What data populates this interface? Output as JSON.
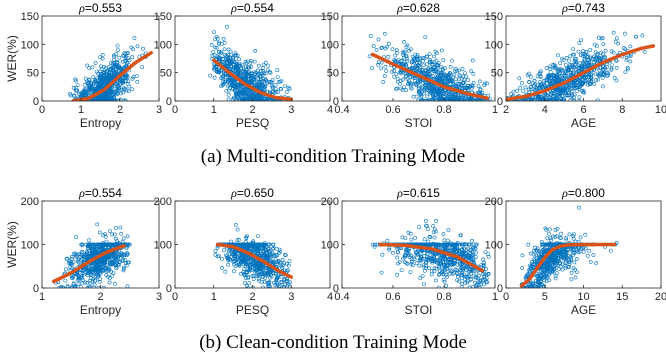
{
  "captions": [
    "(a)  Multi-condition Training Mode",
    "(b)  Clean-condition Training Mode"
  ],
  "colors": {
    "points": "#0072BD",
    "fit": "#D95319",
    "axis": "#262626"
  },
  "chart_data": [
    {
      "type": "scatter",
      "panel": "a1",
      "rho": "0.553",
      "xlabel": "Entropy",
      "ylabel": "WER(%)",
      "xlim": [
        0,
        3
      ],
      "ylim": [
        0,
        150
      ],
      "xticks": [
        0,
        1,
        2,
        3
      ],
      "yticks": [
        0,
        50,
        100,
        150
      ],
      "cloud": {
        "x_range": [
          0.7,
          2.8
        ],
        "center": 1.6,
        "spread": 0.35
      },
      "fit": {
        "x": [
          0.8,
          1.2,
          1.6,
          2.0,
          2.4,
          2.8
        ],
        "y": [
          0,
          5,
          20,
          45,
          68,
          85
        ]
      }
    },
    {
      "type": "scatter",
      "panel": "a2",
      "rho": "0.554",
      "xlabel": "PESQ",
      "ylabel": "",
      "xlim": [
        0,
        4
      ],
      "ylim": [
        0,
        150
      ],
      "xticks": [
        0,
        1,
        2,
        3,
        4
      ],
      "yticks": [
        0,
        50,
        100,
        150
      ],
      "cloud": {
        "x_range": [
          0.9,
          3.0
        ],
        "center": 1.8,
        "spread": 0.45
      },
      "fit": {
        "x": [
          1.0,
          1.4,
          1.8,
          2.2,
          2.6,
          3.0
        ],
        "y": [
          72,
          50,
          30,
          15,
          6,
          3
        ]
      }
    },
    {
      "type": "scatter",
      "panel": "a3",
      "rho": "0.628",
      "xlabel": "STOI",
      "ylabel": "",
      "xlim": [
        0.4,
        1
      ],
      "ylim": [
        0,
        150
      ],
      "xticks": [
        0.4,
        0.6,
        0.8,
        1
      ],
      "yticks": [
        0,
        50,
        100,
        150
      ],
      "cloud": {
        "x_range": [
          0.5,
          0.98
        ],
        "center": 0.78,
        "spread": 0.1
      },
      "fit": {
        "x": [
          0.52,
          0.6,
          0.7,
          0.8,
          0.9,
          0.97
        ],
        "y": [
          82,
          65,
          45,
          25,
          12,
          5
        ]
      }
    },
    {
      "type": "scatter",
      "panel": "a4",
      "rho": "0.743",
      "xlabel": "AGE",
      "ylabel": "",
      "xlim": [
        2,
        10
      ],
      "ylim": [
        0,
        150
      ],
      "xticks": [
        2,
        4,
        6,
        8,
        10
      ],
      "yticks": [
        0,
        50,
        100,
        150
      ],
      "cloud": {
        "x_range": [
          2.0,
          9.5
        ],
        "center": 5.0,
        "spread": 1.4
      },
      "fit": {
        "x": [
          2.0,
          3.0,
          4.0,
          5.0,
          6.0,
          7.0,
          8.0,
          9.0,
          9.6
        ],
        "y": [
          3,
          8,
          18,
          32,
          50,
          68,
          82,
          93,
          97
        ]
      }
    },
    {
      "type": "scatter",
      "panel": "b1",
      "rho": "0.554",
      "xlabel": "Entropy",
      "ylabel": "WER(%)",
      "xlim": [
        1,
        3
      ],
      "ylim": [
        0,
        200
      ],
      "xticks": [
        1,
        2,
        3
      ],
      "yticks": [
        0,
        100,
        200
      ],
      "cap": 100,
      "cloud": {
        "x_range": [
          1.2,
          2.5
        ],
        "center": 2.0,
        "spread": 0.25
      },
      "fit": {
        "x": [
          1.2,
          1.5,
          1.8,
          2.1,
          2.4
        ],
        "y": [
          15,
          35,
          60,
          82,
          97
        ]
      }
    },
    {
      "type": "scatter",
      "panel": "b2",
      "rho": "0.650",
      "xlabel": "PESQ",
      "ylabel": "",
      "xlim": [
        0,
        4
      ],
      "ylim": [
        0,
        200
      ],
      "xticks": [
        0,
        1,
        2,
        3,
        4
      ],
      "yticks": [
        0,
        100,
        200
      ],
      "cap": 100,
      "cloud": {
        "x_range": [
          1.0,
          3.0
        ],
        "center": 2.0,
        "spread": 0.45
      },
      "fit": {
        "x": [
          1.1,
          1.5,
          1.9,
          2.3,
          2.7,
          3.0
        ],
        "y": [
          100,
          95,
          80,
          60,
          38,
          25
        ]
      }
    },
    {
      "type": "scatter",
      "panel": "b3",
      "rho": "0.615",
      "xlabel": "STOI",
      "ylabel": "",
      "xlim": [
        0.4,
        1
      ],
      "ylim": [
        0,
        200
      ],
      "xticks": [
        0.4,
        0.6,
        0.8,
        1
      ],
      "yticks": [
        0,
        100,
        200
      ],
      "cap": 100,
      "cloud": {
        "x_range": [
          0.52,
          0.98
        ],
        "center": 0.8,
        "spread": 0.1
      },
      "fit": {
        "x": [
          0.55,
          0.65,
          0.75,
          0.85,
          0.95
        ],
        "y": [
          100,
          98,
          90,
          72,
          40
        ]
      }
    },
    {
      "type": "scatter",
      "panel": "b4",
      "rho": "0.800",
      "xlabel": "AGE",
      "ylabel": "",
      "xlim": [
        0,
        20
      ],
      "ylim": [
        0,
        200
      ],
      "xticks": [
        0,
        5,
        10,
        15,
        20
      ],
      "yticks": [
        0,
        100,
        200
      ],
      "cap": 100,
      "cloud": {
        "x_range": [
          2.0,
          14.5
        ],
        "center": 6.0,
        "spread": 2.0
      },
      "fit": {
        "x": [
          2.0,
          3.0,
          4.0,
          5.0,
          6.0,
          7.0,
          8.0,
          10.0,
          12.0,
          14.0
        ],
        "y": [
          5,
          20,
          45,
          70,
          88,
          96,
          99,
          100,
          100,
          100
        ]
      }
    }
  ]
}
